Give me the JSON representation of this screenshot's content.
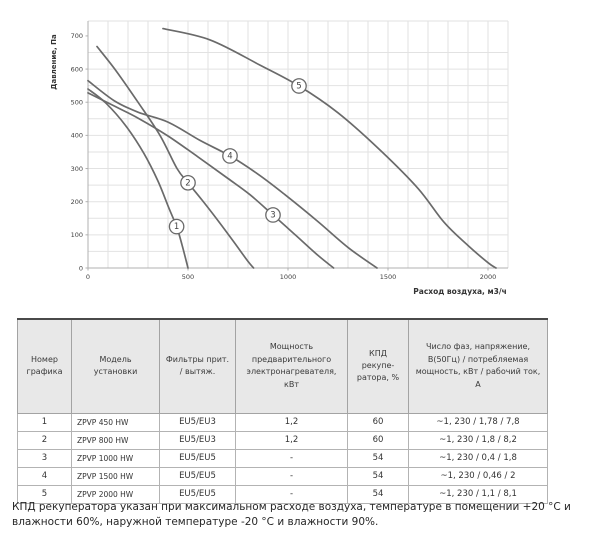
{
  "footnote": "КПД рекуператора указан при максимальном расходе воздуха, температуре в помещении +20 °C и влажности 60%, наружной температуре -20 °C и влажности 90%.",
  "table": {
    "headers": [
      "Номер графика",
      "Модель установки",
      "Фильтры прит. / вытяж.",
      "Мощность предварительного электронагревателя, кВт",
      "КПД рекупе-ратора, %",
      "Число фаз, напряжение, В(50Гц) / потребляемая мощность, кВт / рабочий ток, А"
    ],
    "rows": [
      [
        "1",
        "ZPVP 450 HW",
        "EU5/EU3",
        "1,2",
        "60",
        "~1, 230 / 1,78 / 7,8"
      ],
      [
        "2",
        "ZPVP 800 HW",
        "EU5/EU3",
        "1,2",
        "60",
        "~1, 230 / 1,8 / 8,2"
      ],
      [
        "3",
        "ZPVP 1000 HW",
        "EU5/EU5",
        "-",
        "54",
        "~1, 230 / 0,4 / 1,8"
      ],
      [
        "4",
        "ZPVP 1500 HW",
        "EU5/EU5",
        "-",
        "54",
        "~1, 230 / 0,46 / 2"
      ],
      [
        "5",
        "ZPVP 2000 HW",
        "EU5/EU5",
        "-",
        "54",
        "~1, 230 / 1,1 / 8,1"
      ]
    ]
  },
  "chart_data": {
    "type": "line",
    "title": "",
    "xlabel": "Расход воздуха, м3/ч",
    "ylabel": "Давление, Па",
    "xlim": [
      0,
      2100
    ],
    "ylim": [
      0,
      745
    ],
    "x_ticks": [
      0,
      500,
      1000,
      1500,
      2000
    ],
    "y_ticks": [
      0,
      100,
      200,
      300,
      400,
      500,
      600,
      700
    ],
    "grid": true,
    "x_grid_step": 100,
    "y_grid_step": 50,
    "legend_position": "none",
    "colors": {
      "curve": "#6a6a6a",
      "grid": "#e2e2e2",
      "axis": "#b0b0b0",
      "tick_text": "#404040",
      "axis_title": "#333333",
      "marker_fill": "#ffffff"
    },
    "series": [
      {
        "name": "1",
        "model": "ZPVP 450 HW",
        "marker": {
          "label": "1",
          "flow": 443,
          "pressure": 125
        },
        "points": [
          [
            0,
            540
          ],
          [
            90,
            497
          ],
          [
            190,
            428
          ],
          [
            280,
            345
          ],
          [
            350,
            262
          ],
          [
            405,
            180
          ],
          [
            443,
            125
          ],
          [
            470,
            70
          ],
          [
            500,
            0
          ]
        ]
      },
      {
        "name": "2",
        "model": "ZPVP 800 HW",
        "marker": {
          "label": "2",
          "flow": 500,
          "pressure": 257
        },
        "points": [
          [
            45,
            668
          ],
          [
            140,
            595
          ],
          [
            250,
            500
          ],
          [
            360,
            400
          ],
          [
            445,
            300
          ],
          [
            500,
            257
          ],
          [
            570,
            205
          ],
          [
            650,
            143
          ],
          [
            730,
            78
          ],
          [
            800,
            20
          ],
          [
            828,
            0
          ]
        ]
      },
      {
        "name": "3",
        "model": "ZPVP 1000 HW",
        "marker": {
          "label": "3",
          "flow": 925,
          "pressure": 160
        },
        "points": [
          [
            0,
            528
          ],
          [
            120,
            492
          ],
          [
            250,
            452
          ],
          [
            400,
            398
          ],
          [
            550,
            335
          ],
          [
            700,
            270
          ],
          [
            810,
            221
          ],
          [
            925,
            160
          ],
          [
            1040,
            98
          ],
          [
            1150,
            38
          ],
          [
            1228,
            0
          ]
        ]
      },
      {
        "name": "4",
        "model": "ZPVP 1500 HW",
        "marker": {
          "label": "4",
          "flow": 710,
          "pressure": 338
        },
        "points": [
          [
            0,
            565
          ],
          [
            130,
            505
          ],
          [
            250,
            470
          ],
          [
            400,
            440
          ],
          [
            560,
            385
          ],
          [
            710,
            338
          ],
          [
            850,
            283
          ],
          [
            985,
            221
          ],
          [
            1150,
            140
          ],
          [
            1300,
            62
          ],
          [
            1445,
            0
          ]
        ]
      },
      {
        "name": "5",
        "model": "ZPVP 2000 HW",
        "marker": {
          "label": "5",
          "flow": 1055,
          "pressure": 549
        },
        "points": [
          [
            375,
            722
          ],
          [
            610,
            688
          ],
          [
            860,
            612
          ],
          [
            1055,
            549
          ],
          [
            1250,
            468
          ],
          [
            1460,
            356
          ],
          [
            1650,
            240
          ],
          [
            1780,
            138
          ],
          [
            1900,
            68
          ],
          [
            2000,
            16
          ],
          [
            2040,
            0
          ]
        ]
      }
    ]
  }
}
